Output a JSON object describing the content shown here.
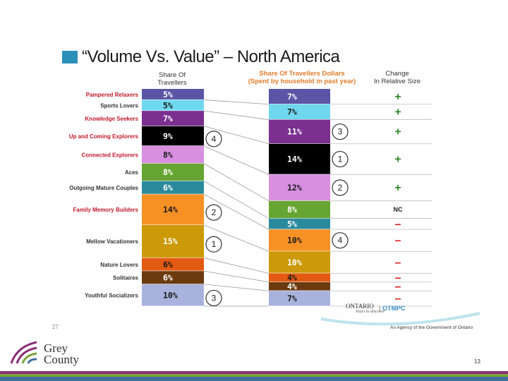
{
  "slide": {
    "title": "“Volume Vs. Value” – North America",
    "page_left": "27",
    "page_right": "13",
    "agency": "An Agency of the Government of Ontario",
    "ontario_logo": "ONTARIO",
    "ontario_tagline": "Yours to discover",
    "otmpc_logo": "OTMPC",
    "grey_county_line1": "Grey",
    "grey_county_line2": "County"
  },
  "headers": {
    "share_travellers_1": "Share Of",
    "share_travellers_2": "Travellers",
    "share_dollars_1": "Share Of Travellers Dollars",
    "share_dollars_2": "(Spent by household in past year)",
    "change_1": "Change",
    "change_2": "In Relative Size"
  },
  "colors": {
    "label_red": "#c0182a",
    "label_dark": "#333333",
    "dollars_header": "#e07b2a",
    "plus": "#2e8b2e",
    "minus": "#d62020"
  },
  "chart_data": {
    "type": "table",
    "title": "“Volume Vs. Value” – North America",
    "segments": [
      {
        "name": "Pampered Relaxers",
        "share_travellers": 5,
        "travellers_label": "5%",
        "share_dollars": 7,
        "dollars_label": "7%",
        "change": "+",
        "color": "#5b55a6",
        "text_color": "#ffffff",
        "label_color": "#c0182a"
      },
      {
        "name": "Sports Lovers",
        "share_travellers": 5,
        "travellers_label": "5%",
        "share_dollars": 7,
        "dollars_label": "7%",
        "change": "+",
        "color": "#6fd8ef",
        "text_color": "#1a1a1a",
        "label_color": "#333333"
      },
      {
        "name": "Knowledge Seekers",
        "share_travellers": 7,
        "travellers_label": "7%",
        "share_dollars": 11,
        "dollars_label": "11%",
        "change": "+",
        "color": "#7b2f8f",
        "text_color": "#ffffff",
        "label_color": "#c0182a"
      },
      {
        "name": "Up and Coming Explorers",
        "share_travellers": 9,
        "travellers_label": "9%",
        "share_dollars": 14,
        "dollars_label": "14%",
        "change": "+",
        "color": "#000000",
        "text_color": "#ffffff",
        "label_color": "#c0182a"
      },
      {
        "name": "Connected Explorers",
        "share_travellers": 8,
        "travellers_label": "8%",
        "share_dollars": 12,
        "dollars_label": "12%",
        "change": "+",
        "color": "#d88fe0",
        "text_color": "#1a1a1a",
        "label_color": "#c0182a"
      },
      {
        "name": "Aces",
        "share_travellers": 8,
        "travellers_label": "8%",
        "share_dollars": 8,
        "dollars_label": "8%",
        "change": "NC",
        "color": "#66a532",
        "text_color": "#ffffff",
        "label_color": "#333333"
      },
      {
        "name": "Outgoing Mature Couples",
        "share_travellers": 6,
        "travellers_label": "6%",
        "share_dollars": 5,
        "dollars_label": "5%",
        "change": "–",
        "color": "#2a8a9c",
        "text_color": "#ffffff",
        "label_color": "#333333"
      },
      {
        "name": "Family Memory Builders",
        "share_travellers": 14,
        "travellers_label": "14%",
        "share_dollars": 10,
        "dollars_label": "10%",
        "change": "–",
        "color": "#f79126",
        "text_color": "#1a1a1a",
        "label_color": "#c0182a"
      },
      {
        "name": "Mellow Vacationers",
        "share_travellers": 15,
        "travellers_label": "15%",
        "share_dollars": 10,
        "dollars_label": "10%",
        "change": "–",
        "color": "#cc9a08",
        "text_color": "#ffffff",
        "label_color": "#333333"
      },
      {
        "name": "Nature Lovers",
        "share_travellers": 6,
        "travellers_label": "6%",
        "share_dollars": 4,
        "dollars_label": "4%",
        "change": "–",
        "color": "#e35a12",
        "text_color": "#1a1a1a",
        "label_color": "#333333"
      },
      {
        "name": "Solitaires",
        "share_travellers": 6,
        "travellers_label": "6%",
        "share_dollars": 4,
        "dollars_label": "4%",
        "change": "–",
        "color": "#6b3a0f",
        "text_color": "#ffffff",
        "label_color": "#333333"
      },
      {
        "name": "Youthful Socializers",
        "share_travellers": 10,
        "travellers_label": "10%",
        "share_dollars": 7,
        "dollars_label": "7%",
        "change": "–",
        "color": "#a8b2dc",
        "text_color": "#1a1a1a",
        "label_color": "#333333"
      }
    ],
    "left_ranks": [
      {
        "segment": "Up and Coming Explorers",
        "rank": "4"
      },
      {
        "segment": "Family Memory Builders",
        "rank": "2"
      },
      {
        "segment": "Mellow Vacationers",
        "rank": "1"
      },
      {
        "segment": "Youthful Socializers",
        "rank": "3"
      }
    ],
    "right_ranks": [
      {
        "segment": "Knowledge Seekers",
        "rank": "3"
      },
      {
        "segment": "Up and Coming Explorers",
        "rank": "1"
      },
      {
        "segment": "Connected Explorers",
        "rank": "2"
      },
      {
        "segment": "Family Memory Builders",
        "rank": "4"
      }
    ]
  }
}
